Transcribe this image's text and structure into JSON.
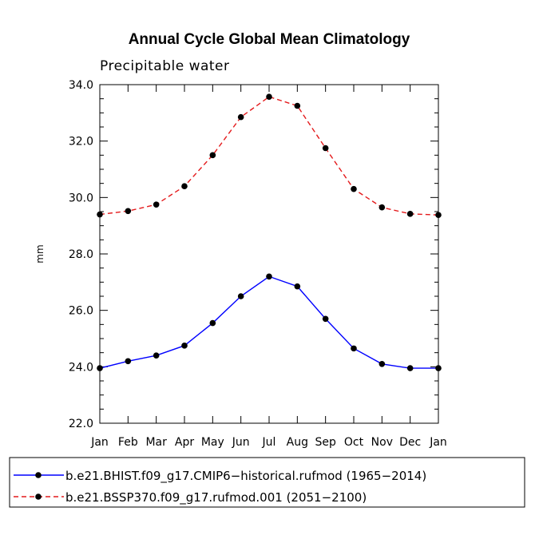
{
  "chart_data": {
    "type": "line",
    "title": "Annual Cycle Global Mean Climatology",
    "subtitle": "Precipitable water",
    "xlabel": "",
    "ylabel": "mm",
    "categories": [
      "Jan",
      "Feb",
      "Mar",
      "Apr",
      "May",
      "Jun",
      "Jul",
      "Aug",
      "Sep",
      "Oct",
      "Nov",
      "Dec",
      "Jan"
    ],
    "ylim": [
      22.0,
      34.0
    ],
    "yticks": [
      "22.0",
      "24.0",
      "26.0",
      "28.0",
      "30.0",
      "32.0",
      "34.0"
    ],
    "grid": false,
    "legend_position": "bottom",
    "series": [
      {
        "name": "b.e21.BHIST.f09_g17.CMIP6−historical.rufmod (1965−2014)",
        "color": "#0000ff",
        "dash": "solid",
        "marker": "filled-circle",
        "values": [
          23.95,
          24.2,
          24.4,
          24.75,
          25.55,
          26.5,
          27.2,
          26.85,
          25.7,
          24.65,
          24.1,
          23.95,
          23.95
        ]
      },
      {
        "name": "b.e21.BSSP370.f09_g17.rufmod.001 (2051−2100)",
        "color": "#e41a1c",
        "dash": "dashed",
        "marker": "filled-circle",
        "values": [
          29.4,
          29.52,
          29.75,
          30.4,
          31.5,
          32.85,
          33.57,
          33.25,
          31.75,
          30.3,
          29.65,
          29.42,
          29.38
        ]
      }
    ]
  }
}
